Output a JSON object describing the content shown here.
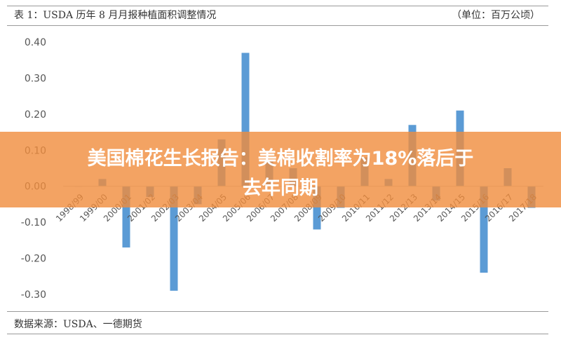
{
  "figure": {
    "title": "表 1：USDA 历年 8 月月报种植面积调整情况",
    "unit": "（单位：百万公顷）",
    "source": "数据来源：USDA、一德期货"
  },
  "banner": {
    "line1": "美国棉花生长报告：美棉收割率为18%落后于",
    "line2": "去年同期",
    "color": "#f08c3c"
  },
  "chart_data": {
    "type": "bar",
    "categories": [
      "1998/99",
      "1999/00",
      "2000/01",
      "2001/02",
      "2002/03",
      "2003/04",
      "2004/05",
      "2005/06",
      "2006/07",
      "2007/08",
      "2008/09",
      "2009/10",
      "2010/11",
      "2011/12",
      "2012/13",
      "2013/14",
      "2014/15",
      "2015/16",
      "2016/17",
      "2017/18"
    ],
    "values": [
      0.0,
      0.02,
      -0.17,
      -0.03,
      -0.29,
      -0.05,
      0.13,
      0.37,
      0.07,
      0.05,
      -0.12,
      -0.06,
      0.08,
      0.02,
      0.17,
      -0.04,
      0.21,
      -0.24,
      0.05,
      -0.06
    ],
    "ylim": [
      -0.3,
      0.4
    ],
    "yticks": [
      "0.40",
      "0.30",
      "0.20",
      "0.10",
      "0.00",
      "-0.10",
      "-0.20",
      "-0.30"
    ],
    "bar_color": "#5b9bd5",
    "grid": false
  }
}
